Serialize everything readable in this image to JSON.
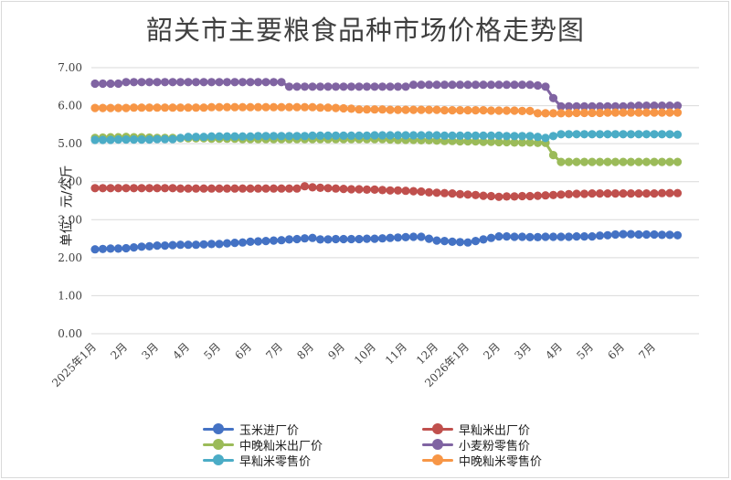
{
  "chart_data": {
    "type": "line",
    "title": "韶关市主要粮食品种市场价格走势图",
    "ylabel": "单位：元/公斤",
    "xlabel": "",
    "ylim": [
      0,
      7
    ],
    "yticks": [
      "0.00",
      "1.00",
      "2.00",
      "3.00",
      "4.00",
      "5.00",
      "6.00",
      "7.00"
    ],
    "x_tick_labels": [
      "2025年1月",
      "2月",
      "3月",
      "4月",
      "5月",
      "6月",
      "7月",
      "8月",
      "9月",
      "10月",
      "11月",
      "12月",
      "2026年1月",
      "2月",
      "3月",
      "4月",
      "5月",
      "6月",
      "7月"
    ],
    "points_per_month": 4,
    "grid": "horizontal",
    "legend_position": "bottom",
    "series": [
      {
        "name": "玉米进厂价",
        "color": "#4472c4",
        "knots": [
          [
            0,
            2.22
          ],
          [
            4,
            2.25
          ],
          [
            8,
            2.32
          ],
          [
            16,
            2.36
          ],
          [
            20,
            2.42
          ],
          [
            24,
            2.46
          ],
          [
            28,
            2.52
          ],
          [
            29,
            2.48
          ],
          [
            36,
            2.5
          ],
          [
            40,
            2.54
          ],
          [
            42,
            2.55
          ],
          [
            44,
            2.45
          ],
          [
            48,
            2.4
          ],
          [
            52,
            2.56
          ],
          [
            56,
            2.54
          ],
          [
            64,
            2.56
          ],
          [
            68,
            2.62
          ],
          [
            76,
            2.59
          ],
          [
            84,
            2.57
          ],
          [
            88,
            2.56
          ],
          [
            91,
            2.55
          ]
        ]
      },
      {
        "name": "早籼米出厂价",
        "color": "#c0504d",
        "knots": [
          [
            0,
            3.83
          ],
          [
            20,
            3.82
          ],
          [
            26,
            3.82
          ],
          [
            27,
            3.88
          ],
          [
            28,
            3.85
          ],
          [
            32,
            3.81
          ],
          [
            40,
            3.76
          ],
          [
            48,
            3.66
          ],
          [
            52,
            3.6
          ],
          [
            56,
            3.62
          ],
          [
            60,
            3.66
          ],
          [
            64,
            3.69
          ],
          [
            82,
            3.7
          ],
          [
            83,
            4.1
          ],
          [
            84,
            4.23
          ],
          [
            91,
            4.23
          ]
        ]
      },
      {
        "name": "中晚籼米出厂价",
        "color": "#9bbb59",
        "knots": [
          [
            0,
            5.15
          ],
          [
            4,
            5.18
          ],
          [
            8,
            5.15
          ],
          [
            20,
            5.12
          ],
          [
            28,
            5.12
          ],
          [
            36,
            5.12
          ],
          [
            40,
            5.1
          ],
          [
            48,
            5.06
          ],
          [
            52,
            5.04
          ],
          [
            58,
            5.02
          ],
          [
            59,
            4.7
          ],
          [
            60,
            4.52
          ],
          [
            82,
            4.52
          ],
          [
            83,
            4.57
          ],
          [
            84,
            4.62
          ],
          [
            91,
            4.62
          ]
        ]
      },
      {
        "name": "小麦粉零售价",
        "color": "#8064a2",
        "knots": [
          [
            0,
            6.58
          ],
          [
            3,
            6.58
          ],
          [
            4,
            6.62
          ],
          [
            24,
            6.62
          ],
          [
            25,
            6.5
          ],
          [
            40,
            6.5
          ],
          [
            41,
            6.55
          ],
          [
            56,
            6.55
          ],
          [
            58,
            6.5
          ],
          [
            59,
            6.2
          ],
          [
            60,
            5.98
          ],
          [
            68,
            5.98
          ],
          [
            70,
            6.0
          ],
          [
            91,
            6.0
          ]
        ]
      },
      {
        "name": "早籼米零售价",
        "color": "#4bacc6",
        "knots": [
          [
            0,
            5.1
          ],
          [
            10,
            5.12
          ],
          [
            12,
            5.18
          ],
          [
            24,
            5.2
          ],
          [
            40,
            5.22
          ],
          [
            56,
            5.2
          ],
          [
            58,
            5.15
          ],
          [
            60,
            5.25
          ],
          [
            88,
            5.24
          ],
          [
            89,
            5.13
          ],
          [
            91,
            5.13
          ]
        ]
      },
      {
        "name": "中晚籼米零售价",
        "color": "#f79646",
        "knots": [
          [
            0,
            5.94
          ],
          [
            20,
            5.96
          ],
          [
            28,
            5.96
          ],
          [
            32,
            5.93
          ],
          [
            34,
            5.9
          ],
          [
            48,
            5.88
          ],
          [
            56,
            5.86
          ],
          [
            57,
            5.8
          ],
          [
            60,
            5.8
          ],
          [
            68,
            5.82
          ],
          [
            78,
            5.82
          ],
          [
            82,
            5.78
          ],
          [
            84,
            5.72
          ],
          [
            88,
            5.72
          ],
          [
            89,
            5.56
          ],
          [
            91,
            5.56
          ]
        ]
      }
    ]
  }
}
